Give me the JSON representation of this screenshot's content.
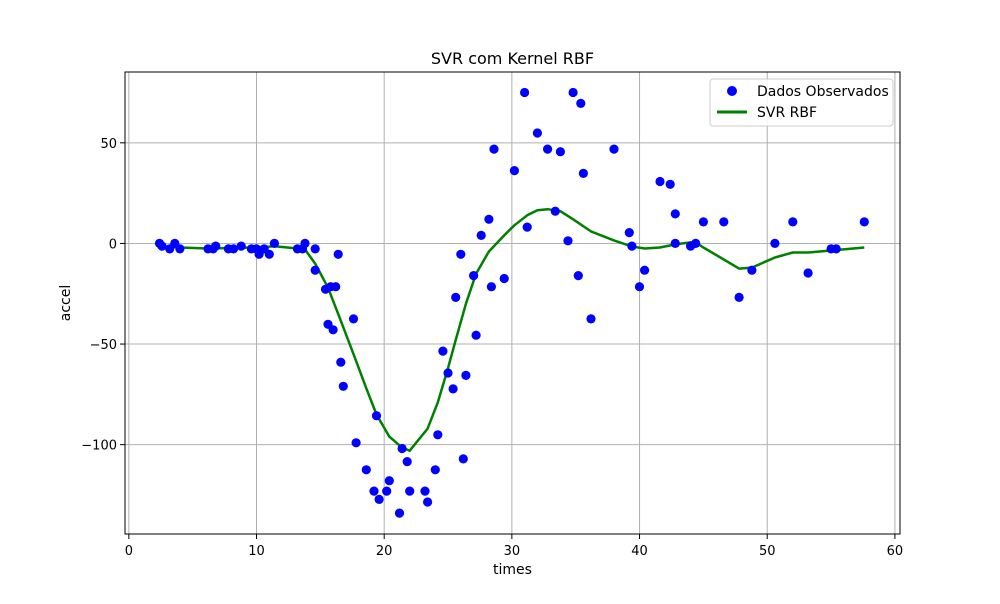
{
  "chart_data": {
    "type": "scatter",
    "title": "SVR com Kernel RBF",
    "xlabel": "times",
    "ylabel": "accel",
    "xlim": [
      -0.3,
      60.4
    ],
    "ylim": [
      -144.4,
      85.2
    ],
    "xticks": [
      0,
      10,
      20,
      30,
      40,
      50,
      60
    ],
    "xtick_labels": [
      "0",
      "10",
      "20",
      "30",
      "40",
      "50",
      "60"
    ],
    "yticks": [
      -100,
      -50,
      0,
      50
    ],
    "ytick_labels": [
      "−100",
      "−50",
      "0",
      "50"
    ],
    "grid": true,
    "legend_position": "top-right",
    "series": [
      {
        "name": "Dados Observados",
        "kind": "scatter",
        "color": "#0000ff",
        "points": [
          [
            2.4,
            0.0
          ],
          [
            2.6,
            -1.3
          ],
          [
            3.2,
            -2.7
          ],
          [
            3.6,
            0.0
          ],
          [
            4.0,
            -2.7
          ],
          [
            6.2,
            -2.7
          ],
          [
            6.6,
            -2.7
          ],
          [
            6.8,
            -1.3
          ],
          [
            7.8,
            -2.7
          ],
          [
            8.2,
            -2.7
          ],
          [
            8.8,
            -1.3
          ],
          [
            9.6,
            -2.7
          ],
          [
            10.0,
            -2.7
          ],
          [
            10.2,
            -5.4
          ],
          [
            10.6,
            -2.7
          ],
          [
            11.0,
            -5.4
          ],
          [
            11.4,
            0.0
          ],
          [
            13.2,
            -2.7
          ],
          [
            13.6,
            -2.7
          ],
          [
            13.8,
            0.0
          ],
          [
            14.6,
            -13.3
          ],
          [
            14.6,
            -2.7
          ],
          [
            15.4,
            -22.8
          ],
          [
            15.6,
            -40.2
          ],
          [
            15.8,
            -21.5
          ],
          [
            16.0,
            -42.9
          ],
          [
            16.2,
            -21.5
          ],
          [
            16.4,
            -5.4
          ],
          [
            16.6,
            -59.0
          ],
          [
            16.8,
            -71.0
          ],
          [
            17.6,
            -37.5
          ],
          [
            17.8,
            -99.1
          ],
          [
            18.6,
            -112.5
          ],
          [
            19.2,
            -123.1
          ],
          [
            19.4,
            -85.6
          ],
          [
            19.6,
            -127.2
          ],
          [
            20.2,
            -123.1
          ],
          [
            20.4,
            -117.9
          ],
          [
            21.2,
            -134.0
          ],
          [
            21.4,
            -101.9
          ],
          [
            21.8,
            -108.4
          ],
          [
            22.0,
            -123.1
          ],
          [
            23.2,
            -123.1
          ],
          [
            23.4,
            -128.5
          ],
          [
            24.0,
            -112.5
          ],
          [
            24.2,
            -95.1
          ],
          [
            24.6,
            -53.5
          ],
          [
            25.0,
            -64.4
          ],
          [
            25.4,
            -72.3
          ],
          [
            25.6,
            -26.8
          ],
          [
            26.0,
            -5.4
          ],
          [
            26.2,
            -107.1
          ],
          [
            26.4,
            -65.6
          ],
          [
            27.0,
            -16.0
          ],
          [
            27.2,
            -45.6
          ],
          [
            27.6,
            4.0
          ],
          [
            28.2,
            12.0
          ],
          [
            28.4,
            -21.5
          ],
          [
            28.6,
            46.9
          ],
          [
            29.4,
            -17.4
          ],
          [
            30.2,
            36.2
          ],
          [
            31.0,
            75.0
          ],
          [
            31.2,
            8.1
          ],
          [
            32.0,
            54.9
          ],
          [
            32.8,
            46.9
          ],
          [
            33.4,
            16.0
          ],
          [
            33.8,
            45.6
          ],
          [
            34.4,
            1.3
          ],
          [
            34.8,
            75.0
          ],
          [
            35.2,
            -16.0
          ],
          [
            35.4,
            69.6
          ],
          [
            35.6,
            34.8
          ],
          [
            36.2,
            -37.5
          ],
          [
            38.0,
            46.9
          ],
          [
            39.2,
            5.4
          ],
          [
            39.4,
            -1.3
          ],
          [
            40.0,
            -21.5
          ],
          [
            40.4,
            -13.3
          ],
          [
            41.6,
            30.8
          ],
          [
            42.4,
            29.4
          ],
          [
            42.8,
            0.0
          ],
          [
            42.8,
            14.7
          ],
          [
            44.0,
            -1.3
          ],
          [
            44.4,
            0.0
          ],
          [
            45.0,
            10.7
          ],
          [
            46.6,
            10.7
          ],
          [
            47.8,
            -26.8
          ],
          [
            48.8,
            -13.3
          ],
          [
            50.6,
            0.0
          ],
          [
            52.0,
            10.7
          ],
          [
            53.2,
            -14.7
          ],
          [
            55.0,
            -2.7
          ],
          [
            55.4,
            -2.7
          ],
          [
            57.6,
            10.7
          ]
        ]
      },
      {
        "name": "SVR RBF",
        "kind": "line",
        "color": "#008000",
        "points": [
          [
            2.4,
            -1.5
          ],
          [
            4.0,
            -2.0
          ],
          [
            6.2,
            -2.5
          ],
          [
            8.2,
            -2.2
          ],
          [
            10.0,
            -2.0
          ],
          [
            11.4,
            -1.4
          ],
          [
            13.2,
            -2.5
          ],
          [
            13.8,
            -3.0
          ],
          [
            14.6,
            -10.0
          ],
          [
            15.6,
            -22.0
          ],
          [
            16.4,
            -35.0
          ],
          [
            17.6,
            -55.0
          ],
          [
            18.6,
            -72.0
          ],
          [
            19.4,
            -85.0
          ],
          [
            20.4,
            -96.0
          ],
          [
            21.4,
            -101.5
          ],
          [
            22.0,
            -103.0
          ],
          [
            23.4,
            -92.0
          ],
          [
            24.2,
            -79.0
          ],
          [
            25.0,
            -62.0
          ],
          [
            25.6,
            -48.0
          ],
          [
            26.4,
            -30.0
          ],
          [
            27.2,
            -15.0
          ],
          [
            28.2,
            -4.0
          ],
          [
            29.4,
            4.0
          ],
          [
            30.2,
            9.0
          ],
          [
            31.2,
            14.0
          ],
          [
            32.0,
            16.5
          ],
          [
            32.8,
            17.0
          ],
          [
            33.8,
            16.0
          ],
          [
            34.8,
            12.0
          ],
          [
            36.2,
            6.0
          ],
          [
            38.0,
            1.5
          ],
          [
            39.4,
            -1.5
          ],
          [
            40.4,
            -2.5
          ],
          [
            41.6,
            -2.0
          ],
          [
            42.8,
            -0.5
          ],
          [
            44.0,
            0.5
          ],
          [
            44.4,
            0.5
          ],
          [
            45.0,
            -2.0
          ],
          [
            46.6,
            -8.0
          ],
          [
            47.8,
            -12.5
          ],
          [
            48.8,
            -12.0
          ],
          [
            50.6,
            -7.0
          ],
          [
            52.0,
            -4.5
          ],
          [
            53.2,
            -4.5
          ],
          [
            55.0,
            -3.5
          ],
          [
            57.6,
            -2.0
          ]
        ]
      }
    ]
  }
}
